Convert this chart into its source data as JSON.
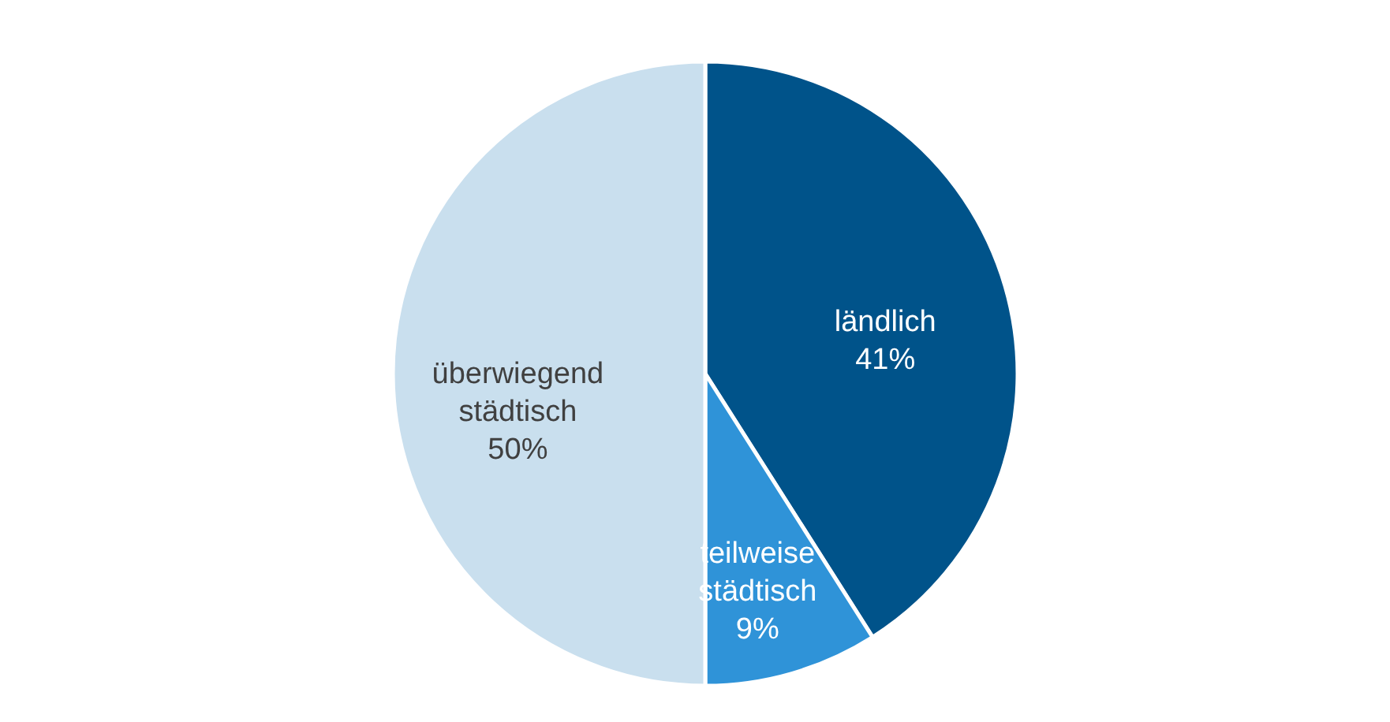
{
  "chart_data": {
    "type": "pie",
    "categories": [
      "ländlich",
      "teilweise städtisch",
      "überwiegend städtisch"
    ],
    "values": [
      41,
      9,
      50
    ],
    "colors": [
      "#00538a",
      "#2f93d8",
      "#c9dfee"
    ],
    "value_labels": [
      "41%",
      "9%",
      "50%"
    ]
  }
}
